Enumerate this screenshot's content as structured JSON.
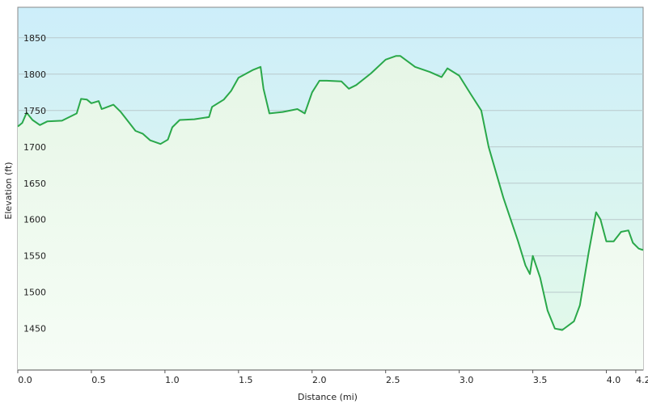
{
  "chart_data": {
    "type": "area-line",
    "x_label": "Distance  (mi)",
    "y_label": "Elevation (ft)",
    "color": "#2aa84a",
    "grid": true,
    "xlim": [
      0,
      4.25
    ],
    "ylim": [
      1393,
      1892
    ],
    "xticks": [
      {
        "value": 0,
        "label": "0.0"
      },
      0.5,
      {
        "value": 1,
        "label": "1.0"
      },
      1.5,
      {
        "value": 2,
        "label": "2.0"
      },
      2.5,
      {
        "value": 3,
        "label": "3.0"
      },
      3.5,
      {
        "value": 4,
        "label": "4.0"
      },
      4.2
    ],
    "yticks": [
      1450,
      1500,
      1550,
      1600,
      1650,
      1700,
      1750,
      1800,
      1850
    ],
    "x": [
      0,
      0.03,
      0.06,
      0.1,
      0.15,
      0.2,
      0.3,
      0.35,
      0.4,
      0.43,
      0.47,
      0.5,
      0.55,
      0.57,
      0.65,
      0.7,
      0.75,
      0.8,
      0.85,
      0.9,
      0.97,
      1.02,
      1.05,
      1.1,
      1.2,
      1.3,
      1.32,
      1.4,
      1.45,
      1.5,
      1.6,
      1.65,
      1.67,
      1.71,
      1.8,
      1.9,
      1.95,
      2.0,
      2.05,
      2.1,
      2.2,
      2.25,
      2.3,
      2.4,
      2.5,
      2.57,
      2.6,
      2.7,
      2.8,
      2.88,
      2.92,
      3.0,
      3.08,
      3.15,
      3.2,
      3.25,
      3.3,
      3.4,
      3.45,
      3.48,
      3.5,
      3.55,
      3.6,
      3.65,
      3.7,
      3.78,
      3.82,
      3.88,
      3.93,
      3.96,
      4.0,
      4.05,
      4.1,
      4.15,
      4.18,
      4.22,
      4.25
    ],
    "values": [
      1728,
      1733,
      1747,
      1737,
      1730,
      1735,
      1736,
      1741,
      1746,
      1766,
      1765,
      1760,
      1763,
      1752,
      1758,
      1748,
      1735,
      1722,
      1718,
      1709,
      1704,
      1710,
      1727,
      1737,
      1738,
      1741,
      1755,
      1765,
      1777,
      1795,
      1806,
      1810,
      1780,
      1746,
      1748,
      1752,
      1746,
      1775,
      1791,
      1791,
      1790,
      1780,
      1785,
      1801,
      1820,
      1825,
      1825,
      1810,
      1803,
      1796,
      1808,
      1798,
      1772,
      1750,
      1700,
      1665,
      1630,
      1570,
      1537,
      1525,
      1550,
      1520,
      1475,
      1450,
      1448,
      1460,
      1482,
      1555,
      1610,
      1600,
      1570,
      1570,
      1583,
      1585,
      1568,
      1560,
      1558
    ]
  }
}
